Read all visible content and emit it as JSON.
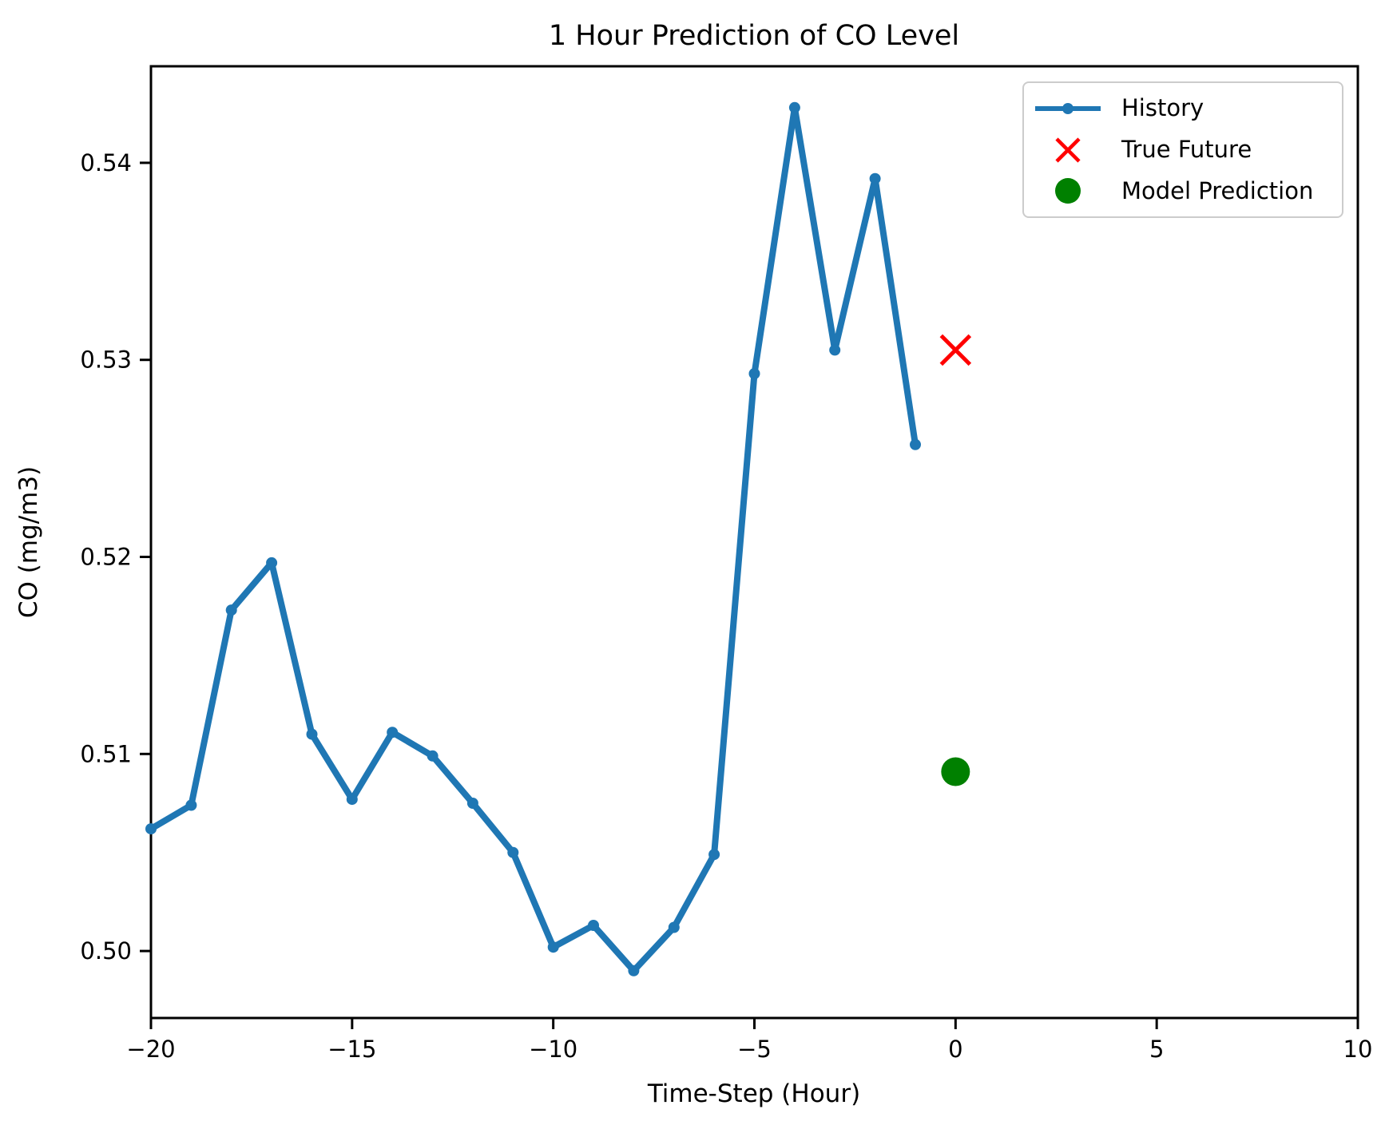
{
  "chart_data": {
    "type": "line",
    "title": "1 Hour Prediction of CO Level",
    "xlabel": "Time-Step (Hour)",
    "ylabel": "CO (mg/m3)",
    "xlim": [
      -20,
      10
    ],
    "ylim": [
      0.4966,
      0.5449
    ],
    "grid": false,
    "legend_position": "upper right",
    "xticks": [
      {
        "v": -20,
        "label": "−20"
      },
      {
        "v": -15,
        "label": "−15"
      },
      {
        "v": -10,
        "label": "−10"
      },
      {
        "v": -5,
        "label": "−5"
      },
      {
        "v": 0,
        "label": "0"
      },
      {
        "v": 5,
        "label": "5"
      },
      {
        "v": 10,
        "label": "10"
      }
    ],
    "yticks": [
      {
        "v": 0.5,
        "label": "0.50"
      },
      {
        "v": 0.51,
        "label": "0.51"
      },
      {
        "v": 0.52,
        "label": "0.52"
      },
      {
        "v": 0.53,
        "label": "0.53"
      },
      {
        "v": 0.54,
        "label": "0.54"
      }
    ],
    "series": [
      {
        "name": "History",
        "kind": "line",
        "marker": "point",
        "color": "#1f77b4",
        "x": [
          -20,
          -19,
          -18,
          -17,
          -16,
          -15,
          -14,
          -13,
          -12,
          -11,
          -10,
          -9,
          -8,
          -7,
          -6,
          -5,
          -4,
          -3,
          -2,
          -1
        ],
        "y": [
          0.5062,
          0.5074,
          0.5173,
          0.5197,
          0.511,
          0.5077,
          0.5111,
          0.5099,
          0.5075,
          0.505,
          0.5002,
          0.5013,
          0.499,
          0.5012,
          0.5049,
          0.5293,
          0.5428,
          0.5305,
          0.5392,
          0.5257
        ]
      },
      {
        "name": "True Future",
        "kind": "scatter",
        "marker": "x",
        "color": "#ff0000",
        "x": [
          0
        ],
        "y": [
          0.5305
        ]
      },
      {
        "name": "Model Prediction",
        "kind": "scatter",
        "marker": "circle",
        "color": "#008000",
        "x": [
          0
        ],
        "y": [
          0.5091
        ]
      }
    ]
  }
}
